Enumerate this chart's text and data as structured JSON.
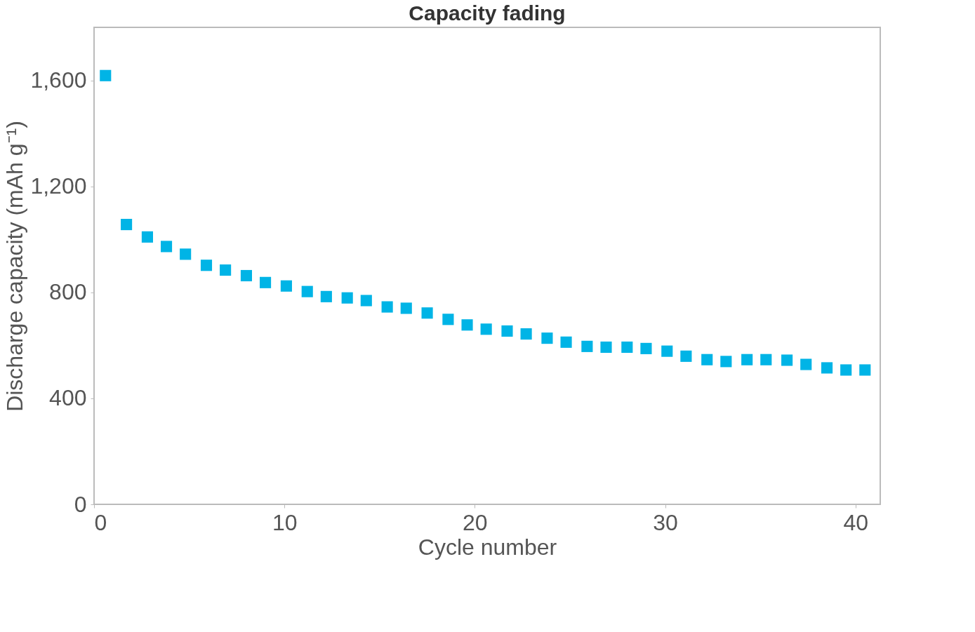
{
  "chart_data": {
    "type": "scatter",
    "title": "Capacity fading",
    "xlabel": "Cycle number",
    "ylabel": "Discharge capacity (mAh g⁻¹)",
    "x": [
      0.6,
      1.7,
      2.8,
      3.8,
      4.8,
      5.9,
      6.9,
      8.0,
      9.0,
      10.1,
      11.2,
      12.2,
      13.3,
      14.3,
      15.4,
      16.4,
      17.5,
      18.6,
      19.6,
      20.6,
      21.7,
      22.7,
      23.8,
      24.8,
      25.9,
      26.9,
      28.0,
      29.0,
      30.1,
      31.1,
      32.2,
      33.2,
      34.3,
      35.3,
      36.4,
      37.4,
      38.5,
      39.5,
      40.5
    ],
    "series": [
      {
        "color": "#00b4e6",
        "values": [
          1618,
          1056,
          1009,
          973,
          944,
          902,
          884,
          863,
          837,
          824,
          803,
          784,
          779,
          769,
          745,
          740,
          722,
          698,
          677,
          661,
          654,
          643,
          627,
          612,
          596,
          593,
          593,
          588,
          578,
          559,
          546,
          539,
          546,
          546,
          544,
          528,
          515,
          507,
          507
        ]
      }
    ],
    "xlim": [
      0,
      41.3
    ],
    "xticks": [
      0,
      10,
      20,
      30,
      40
    ],
    "ylim": [
      0,
      1800
    ],
    "yticks": [
      0,
      400,
      800,
      {
        "value": 1200,
        "label": "1,200"
      },
      {
        "value": 1600,
        "label": "1,600"
      }
    ],
    "marker": "square",
    "grid": false
  }
}
